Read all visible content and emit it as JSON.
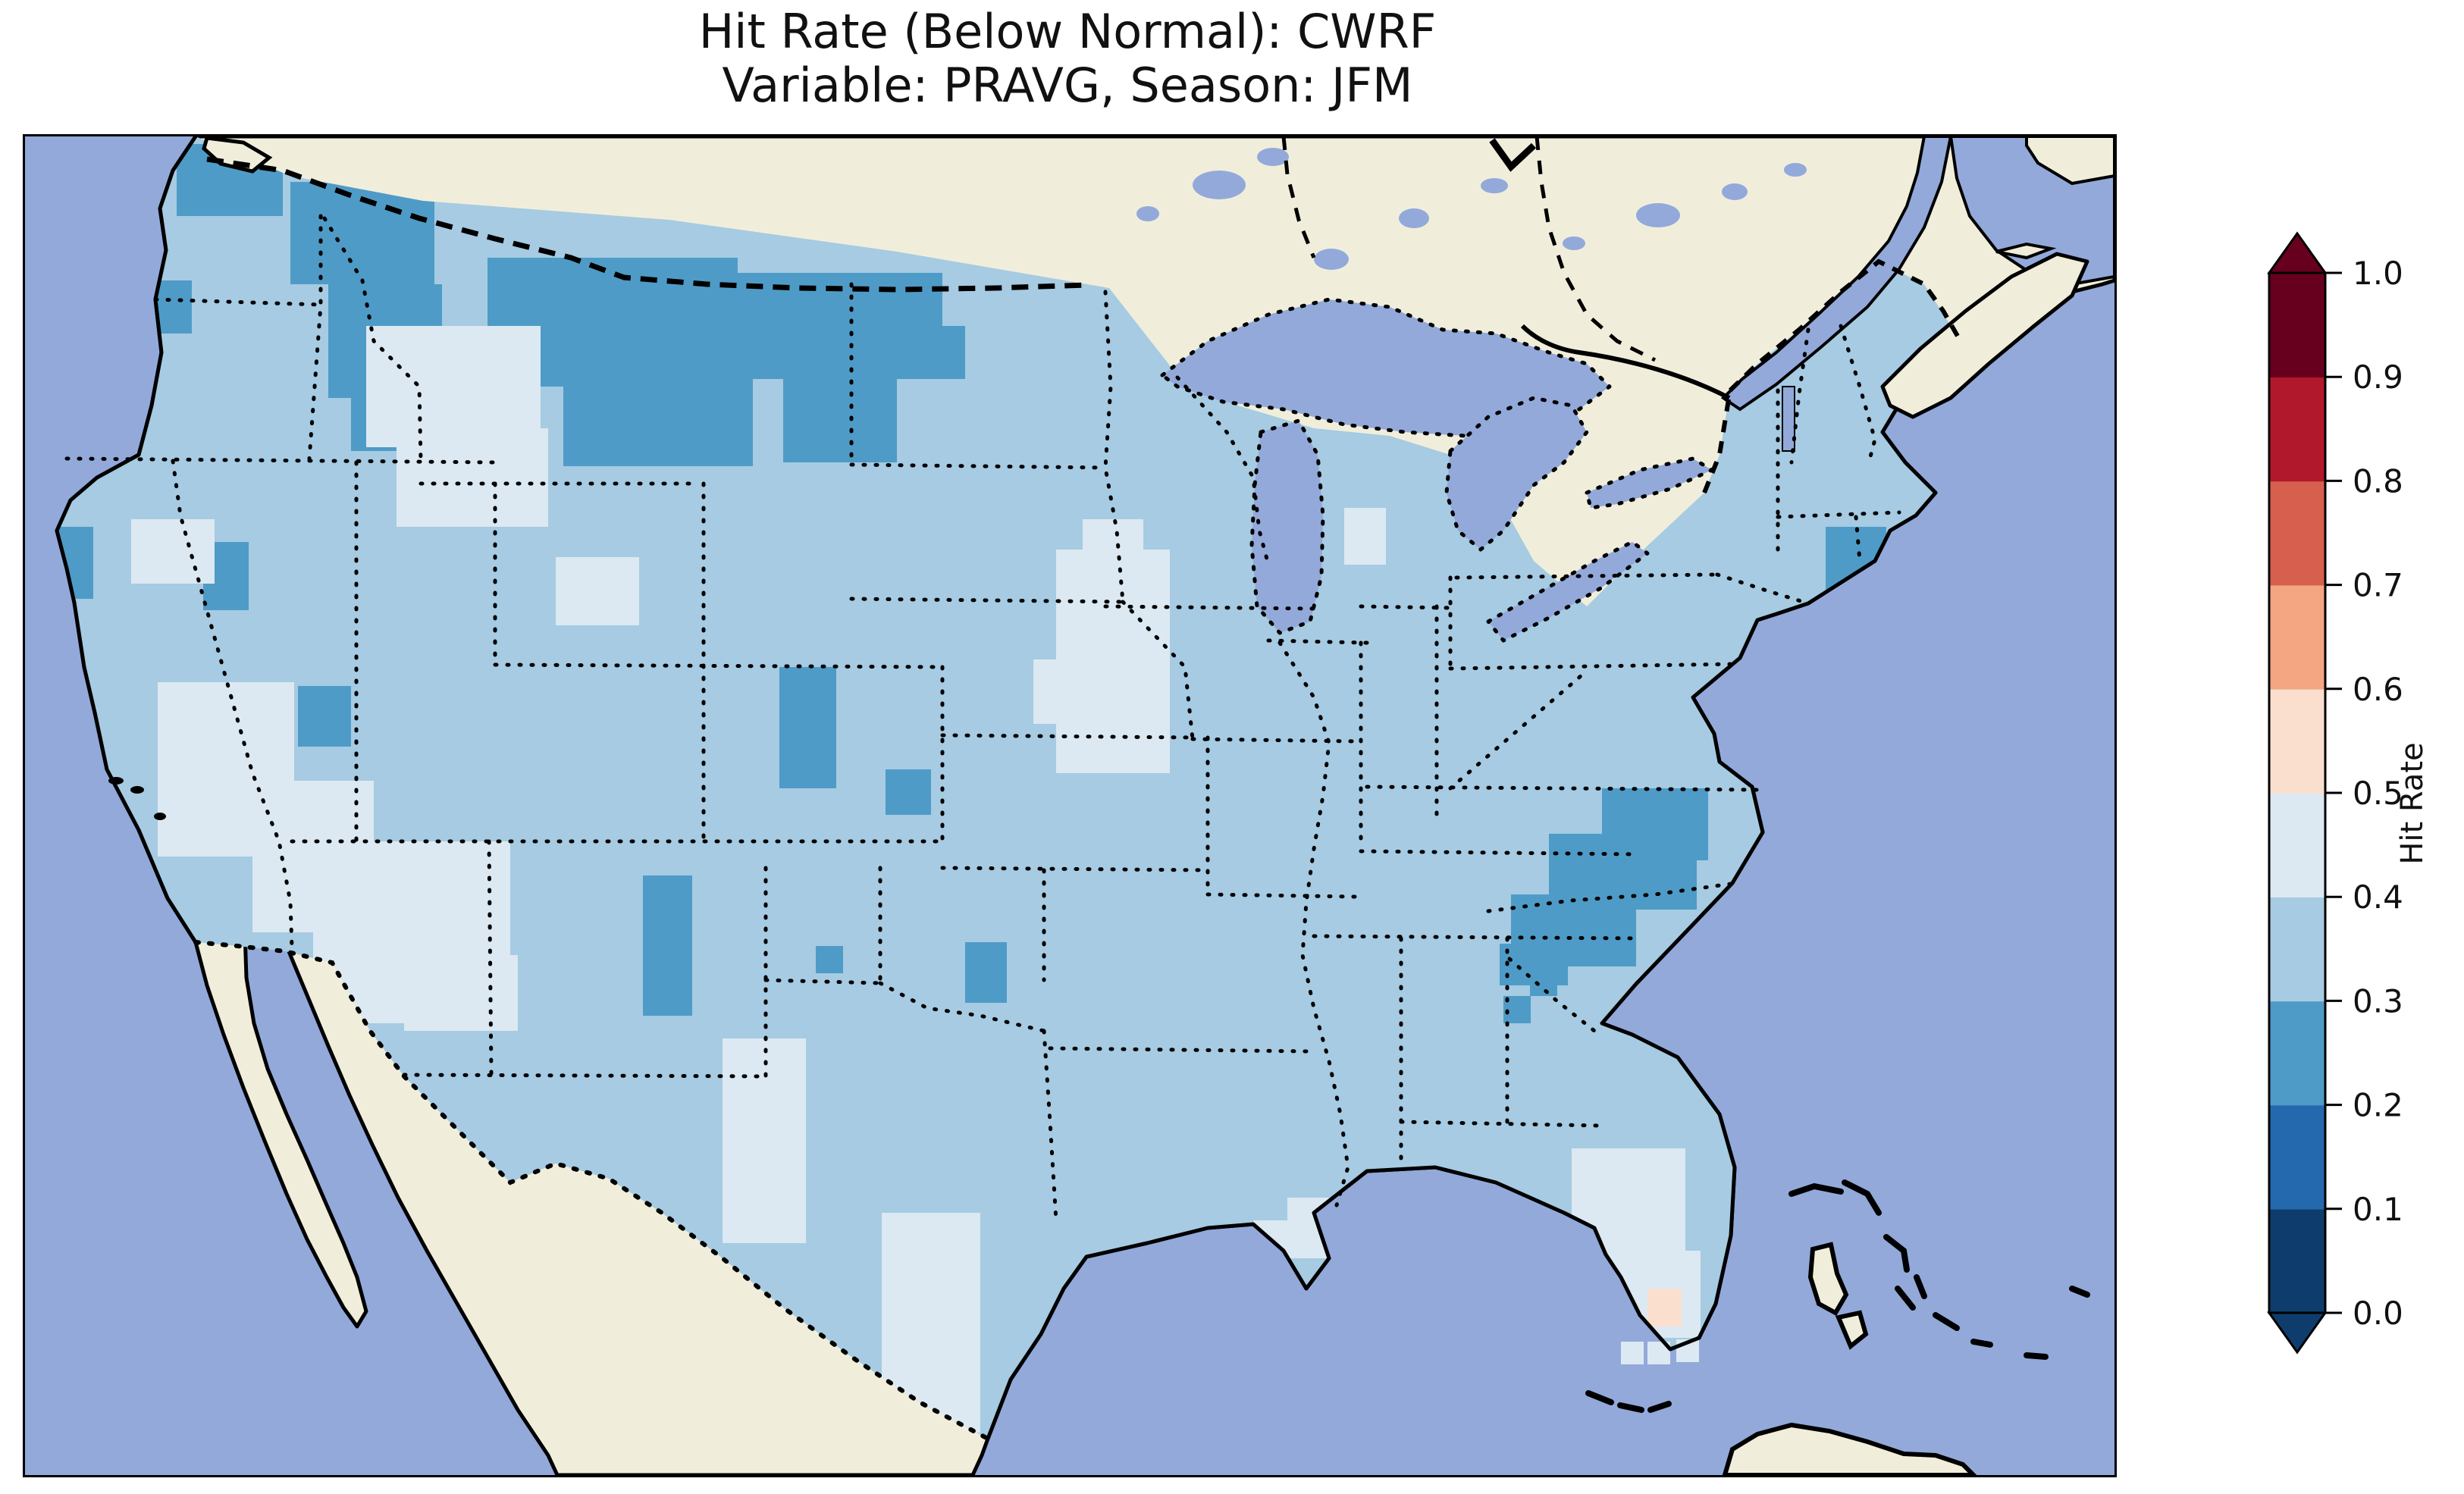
{
  "figure": {
    "title_line1": "Hit Rate (Below Normal): CWRF",
    "title_line2": "Variable: PRAVG, Season: JFM"
  },
  "colorbar": {
    "label": "Hit Rate",
    "orientation": "vertical",
    "extend": "both",
    "ticks": [
      "1.0",
      "0.9",
      "0.8",
      "0.7",
      "0.6",
      "0.5",
      "0.4",
      "0.3",
      "0.2",
      "0.1",
      "0.0"
    ],
    "bins": [
      {
        "range": "0.0-0.1",
        "color": "#0e3d6d"
      },
      {
        "range": "0.1-0.2",
        "color": "#2468ae"
      },
      {
        "range": "0.2-0.3",
        "color": "#4f9bc7"
      },
      {
        "range": "0.3-0.4",
        "color": "#a6cbe2"
      },
      {
        "range": "0.4-0.5",
        "color": "#dce9f2"
      },
      {
        "range": "0.5-0.6",
        "color": "#fbdfce"
      },
      {
        "range": "0.6-0.7",
        "color": "#f4a582"
      },
      {
        "range": "0.7-0.8",
        "color": "#d6604d"
      },
      {
        "range": "0.8-0.9",
        "color": "#b2182b"
      },
      {
        "range": "0.9-1.0",
        "color": "#67001f"
      }
    ],
    "under_color": "#0e3d6d",
    "over_color": "#67001f"
  },
  "map": {
    "ocean_color": "#92a9da",
    "land_color": "#f0eedb",
    "coastline_color": "#000000",
    "state_border_style": "dotted",
    "country_border_style": "dashed"
  },
  "chart_data": {
    "type": "heatmap",
    "metric": "Hit Rate (Below Normal)",
    "model": "CWRF",
    "variable": "PRAVG",
    "season": "JFM",
    "domain": "Continental United States",
    "value_range": [
      0.0,
      1.0
    ],
    "dominant_value_band": "0.3-0.4",
    "palette": {
      "band_02_03": "#4f9bc7",
      "band_03_04": "#a6cbe2",
      "band_04_05": "#dce9f2",
      "band_05_06": "#fbdfce"
    },
    "base_band": "band_03_04",
    "regions": [
      {
        "name": "puget-sound-nw-washington",
        "band": "band_02_03",
        "value_band": "0.2-0.3",
        "rects": [
          [
            200,
            10,
            140,
            95
          ]
        ]
      },
      {
        "name": "washington-coast",
        "band": "band_02_03",
        "value_band": "0.2-0.3",
        "rects": [
          [
            160,
            190,
            60,
            70
          ]
        ]
      },
      {
        "name": "north-idaho-panhandle",
        "band": "band_02_03",
        "value_band": "0.2-0.3",
        "rects": [
          [
            350,
            60,
            190,
            135
          ],
          [
            400,
            195,
            150,
            150
          ],
          [
            430,
            345,
            80,
            70
          ]
        ]
      },
      {
        "name": "central-east-montana-dakotas",
        "band": "band_02_03",
        "value_band": "0.2-0.3",
        "rects": [
          [
            610,
            160,
            330,
            170
          ],
          [
            710,
            300,
            250,
            135
          ],
          [
            930,
            180,
            280,
            140
          ],
          [
            1000,
            320,
            150,
            110
          ],
          [
            1150,
            250,
            90,
            70
          ],
          [
            590,
            40,
            70,
            45
          ]
        ]
      },
      {
        "name": "north-minnesota",
        "band": "band_02_03",
        "value_band": "0.2-0.3",
        "rects": [
          [
            1150,
            60,
            55,
            55
          ],
          [
            1230,
            125,
            40,
            40
          ]
        ]
      },
      {
        "name": "nw-california-coast",
        "band": "band_02_03",
        "value_band": "0.2-0.3",
        "rects": [
          [
            35,
            515,
            55,
            95
          ]
        ]
      },
      {
        "name": "central-nevada",
        "band": "band_02_03",
        "value_band": "0.2-0.3",
        "rects": [
          [
            235,
            535,
            60,
            90
          ]
        ]
      },
      {
        "name": "central-utah",
        "band": "band_02_03",
        "value_band": "0.2-0.3",
        "rects": [
          [
            360,
            725,
            70,
            80
          ]
        ]
      },
      {
        "name": "se-california-cell",
        "band": "band_02_03",
        "value_band": "0.2-0.3",
        "rects": [
          [
            300,
            885,
            40,
            40
          ]
        ]
      },
      {
        "name": "central-colorado",
        "band": "band_02_03",
        "value_band": "0.2-0.3",
        "rects": [
          [
            995,
            700,
            75,
            160
          ]
        ]
      },
      {
        "name": "sw-kansas-cell",
        "band": "band_02_03",
        "value_band": "0.2-0.3",
        "rects": [
          [
            1135,
            835,
            60,
            60
          ]
        ]
      },
      {
        "name": "east-new-mexico",
        "band": "band_02_03",
        "value_band": "0.2-0.3",
        "rects": [
          [
            815,
            975,
            65,
            185
          ]
        ]
      },
      {
        "name": "sw-oklahoma-cell",
        "band": "band_02_03",
        "value_band": "0.2-0.3",
        "rects": [
          [
            1043,
            1068,
            36,
            36
          ]
        ]
      },
      {
        "name": "west-mississippi",
        "band": "band_02_03",
        "value_band": "0.2-0.3",
        "rects": [
          [
            1240,
            1063,
            55,
            80
          ]
        ]
      },
      {
        "name": "east-georgia-cells",
        "band": "band_02_03",
        "value_band": "0.2-0.3",
        "rects": [
          [
            1985,
            1098,
            36,
            36
          ],
          [
            1950,
            1134,
            36,
            36
          ]
        ]
      },
      {
        "name": "carolinas",
        "band": "band_02_03",
        "value_band": "0.2-0.3",
        "rects": [
          [
            2080,
            860,
            140,
            95
          ],
          [
            2010,
            920,
            195,
            100
          ],
          [
            1960,
            1000,
            165,
            95
          ],
          [
            1945,
            1065,
            90,
            55
          ]
        ]
      },
      {
        "name": "long-island-connecticut",
        "band": "band_02_03",
        "value_band": "0.2-0.3",
        "rects": [
          [
            2375,
            515,
            80,
            90
          ]
        ]
      },
      {
        "name": "sw-montana-nw-wyoming",
        "band": "band_04_05",
        "value_band": "0.4-0.5",
        "rects": [
          [
            450,
            250,
            230,
            160
          ],
          [
            490,
            385,
            200,
            130
          ]
        ]
      },
      {
        "name": "central-wyoming",
        "band": "band_04_05",
        "value_band": "0.4-0.5",
        "rects": [
          [
            700,
            555,
            110,
            90
          ]
        ]
      },
      {
        "name": "west-nevada",
        "band": "band_04_05",
        "value_band": "0.4-0.5",
        "rects": [
          [
            140,
            505,
            110,
            85
          ]
        ]
      },
      {
        "name": "se-california-s-nevada-arizona",
        "band": "band_04_05",
        "value_band": "0.4-0.5",
        "rects": [
          [
            175,
            720,
            180,
            230
          ],
          [
            300,
            850,
            160,
            200
          ],
          [
            380,
            930,
            260,
            240
          ],
          [
            500,
            1080,
            150,
            100
          ]
        ]
      },
      {
        "name": "illinois",
        "band": "band_04_05",
        "value_band": "0.4-0.5",
        "rects": [
          [
            1360,
            545,
            150,
            295
          ],
          [
            1395,
            505,
            80,
            55
          ],
          [
            1330,
            690,
            40,
            85
          ]
        ]
      },
      {
        "name": "s-michigan-n-indiana",
        "band": "band_04_05",
        "value_band": "0.4-0.5",
        "rects": [
          [
            1740,
            490,
            55,
            75
          ]
        ]
      },
      {
        "name": "west-texas",
        "band": "band_04_05",
        "value_band": "0.4-0.5",
        "rects": [
          [
            920,
            1190,
            110,
            270
          ]
        ]
      },
      {
        "name": "south-texas",
        "band": "band_04_05",
        "value_band": "0.4-0.5",
        "rects": [
          [
            1130,
            1420,
            130,
            290
          ]
        ]
      },
      {
        "name": "se-louisiana-delta",
        "band": "band_04_05",
        "value_band": "0.4-0.5",
        "rects": [
          [
            1665,
            1400,
            80,
            80
          ],
          [
            1620,
            1430,
            50,
            50
          ]
        ]
      },
      {
        "name": "south-florida",
        "band": "band_04_05",
        "value_band": "0.4-0.5",
        "rects": [
          [
            2040,
            1335,
            150,
            140
          ],
          [
            2070,
            1470,
            140,
            115
          ]
        ]
      },
      {
        "name": "florida-keys-cells",
        "band": "band_04_05",
        "value_band": "0.4-0.5",
        "noclip": true,
        "rects": [
          [
            2105,
            1590,
            30,
            30
          ],
          [
            2140,
            1590,
            30,
            30
          ],
          [
            2178,
            1587,
            30,
            30
          ]
        ]
      },
      {
        "name": "sw-florida-coast-pink",
        "band": "band_05_06",
        "value_band": "0.5-0.6",
        "rects": [
          [
            2140,
            1520,
            45,
            50
          ]
        ]
      }
    ]
  }
}
